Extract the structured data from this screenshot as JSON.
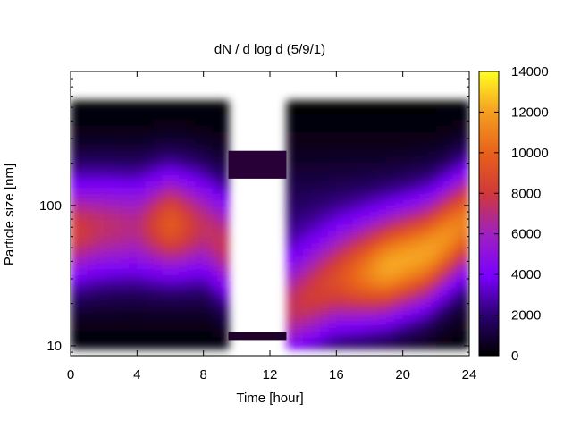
{
  "chart_data": {
    "type": "heatmap",
    "title": "dN / d log d (5/9/1)",
    "xlabel": "Time [hour]",
    "ylabel": "Particle size [nm]",
    "xlim": [
      0,
      24
    ],
    "x_ticks": [
      0,
      4,
      8,
      12,
      16,
      20,
      24
    ],
    "y_scale": "log",
    "ylim": [
      8.5,
      900
    ],
    "y_ticks": [
      10,
      100
    ],
    "colorbar": {
      "min": 0,
      "max": 14000,
      "ticks": [
        0,
        2000,
        4000,
        6000,
        8000,
        10000,
        12000,
        14000
      ],
      "colormap": "black-purple-red-orange-yellow"
    },
    "data_gaps_hours": [
      [
        9.5,
        13.0
      ]
    ],
    "mode_diameter_nm": [
      {
        "t": 0,
        "d": 65,
        "v": 6500
      },
      {
        "t": 2,
        "d": 70,
        "v": 5500
      },
      {
        "t": 4,
        "d": 70,
        "v": 5000
      },
      {
        "t": 6,
        "d": 75,
        "v": 8000
      },
      {
        "t": 8,
        "d": 70,
        "v": 5500
      },
      {
        "t": 13.2,
        "d": 18,
        "v": 7000
      },
      {
        "t": 16,
        "d": 28,
        "v": 8000
      },
      {
        "t": 19,
        "d": 35,
        "v": 11000
      },
      {
        "t": 21.5,
        "d": 45,
        "v": 10500
      },
      {
        "t": 24,
        "d": 80,
        "v": 9000
      }
    ]
  }
}
